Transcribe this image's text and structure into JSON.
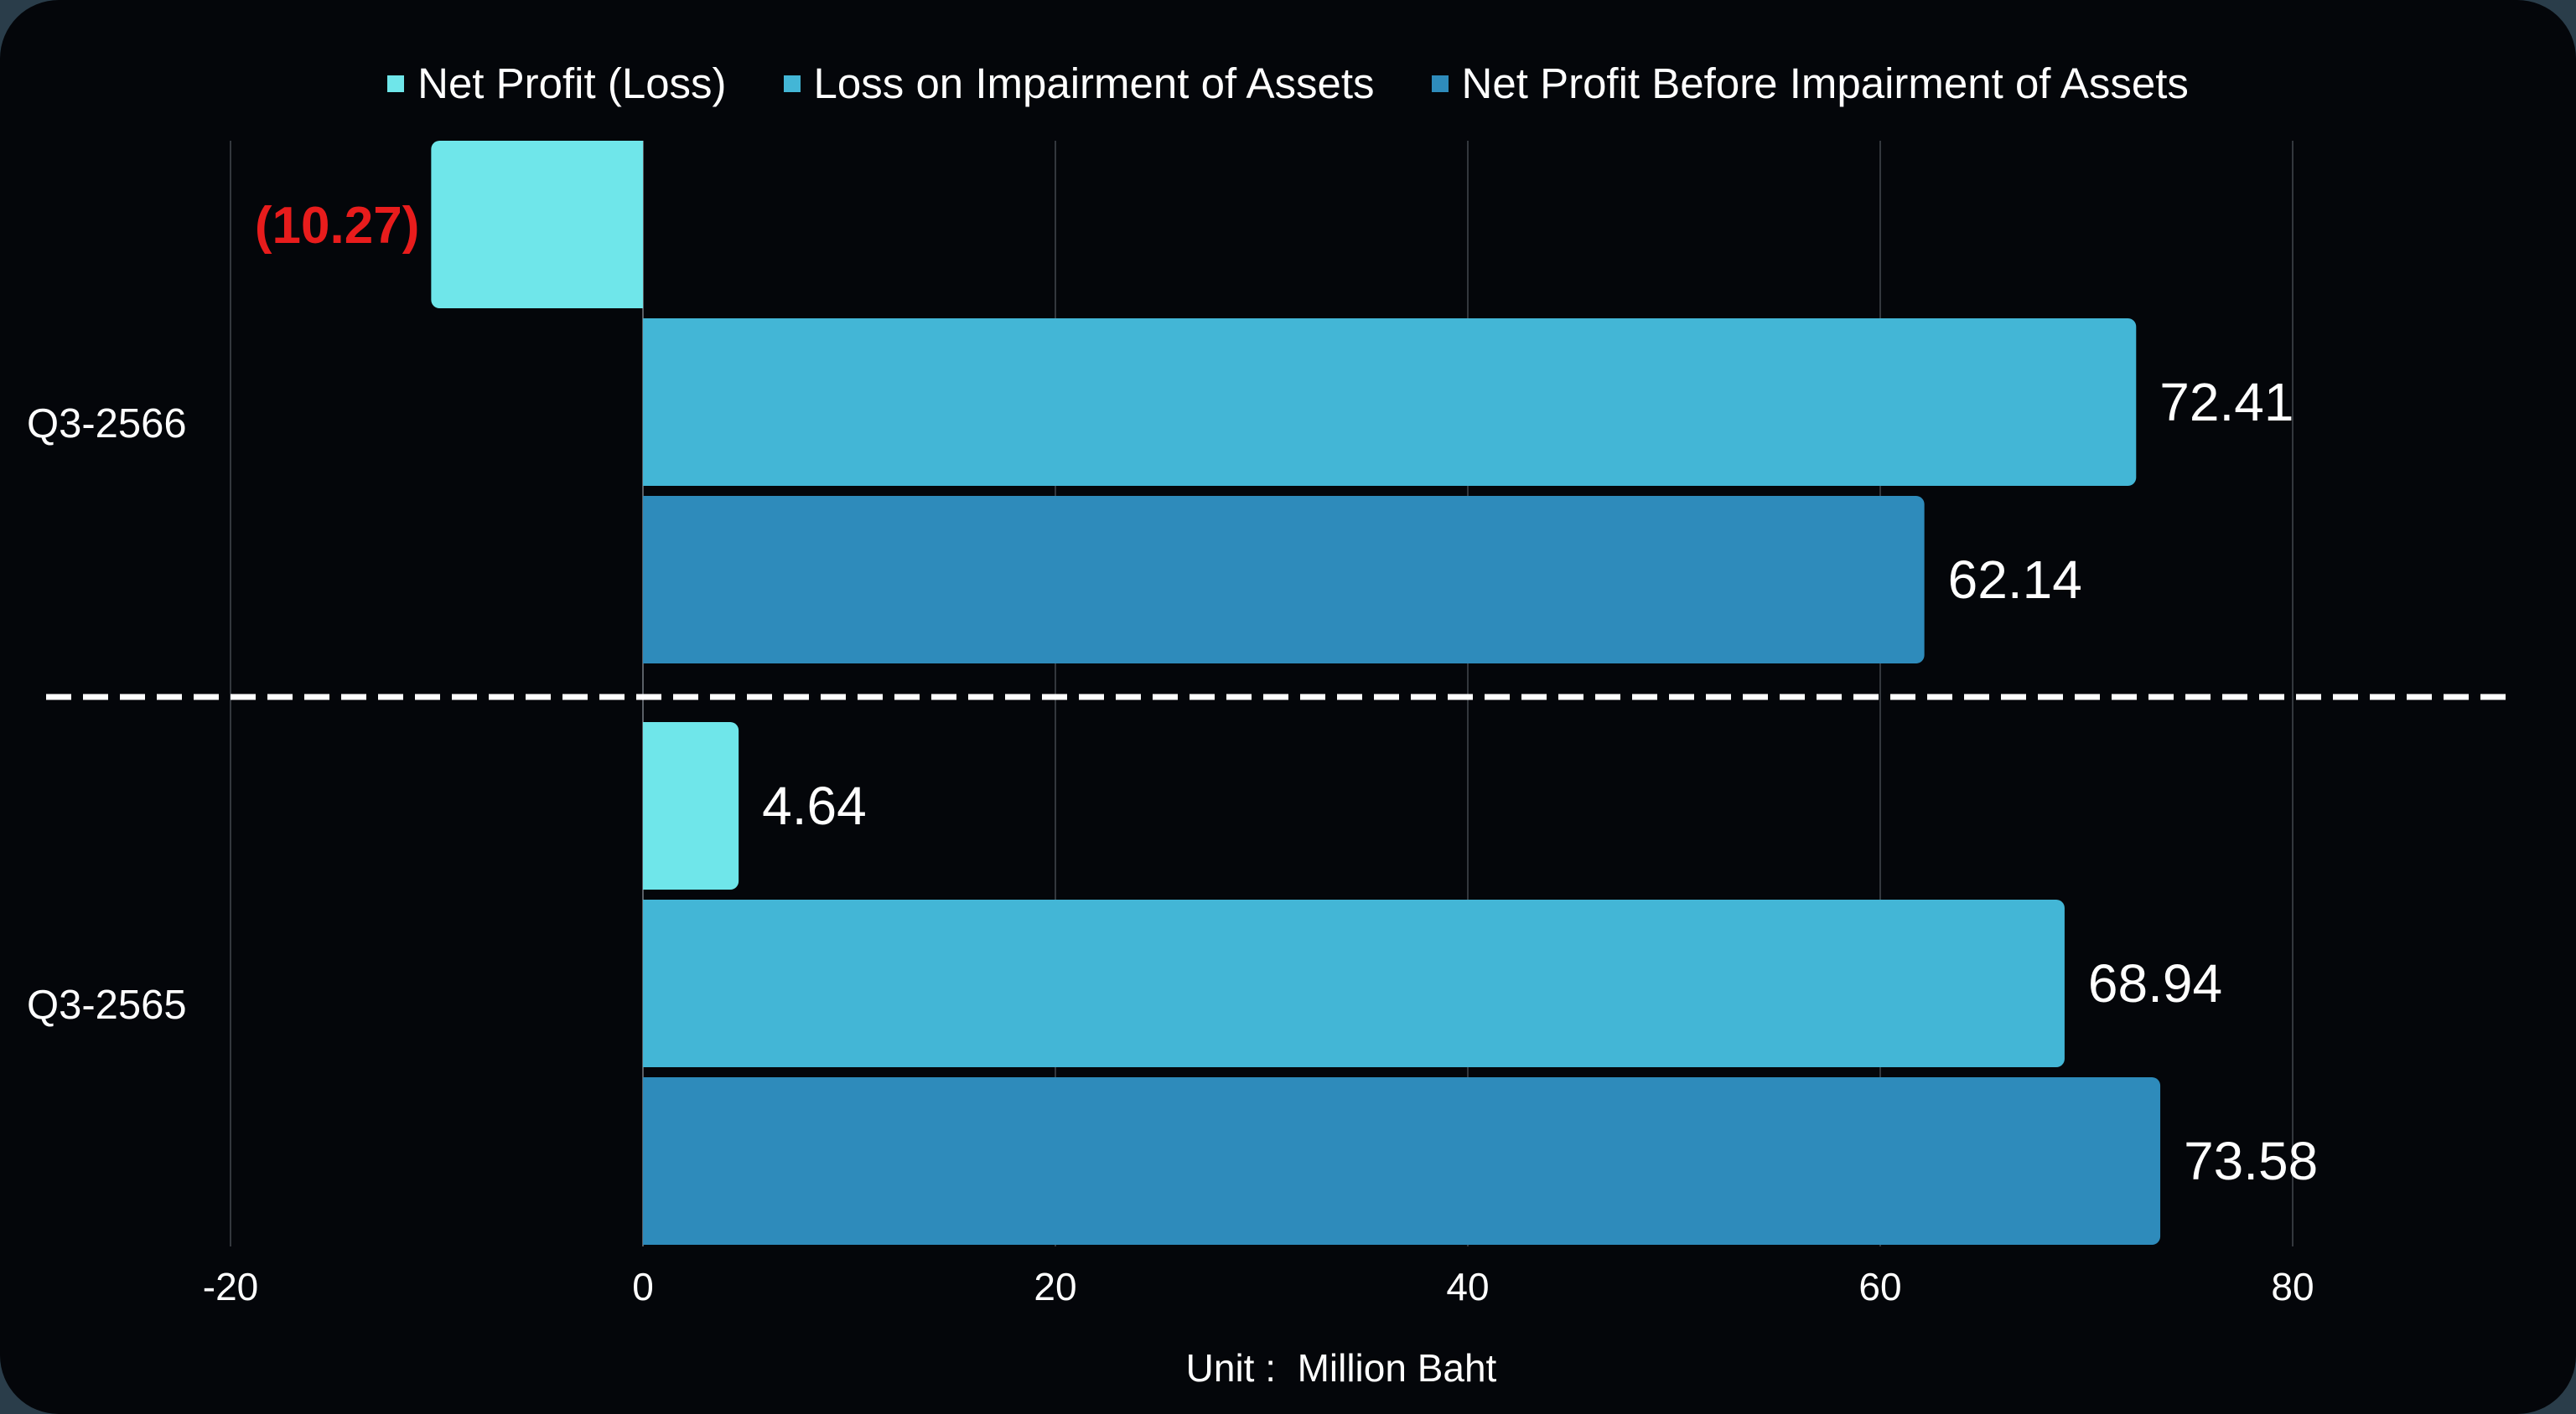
{
  "chart_data": {
    "type": "bar",
    "orientation": "horizontal",
    "categories": [
      "Q3-2566",
      "Q3-2565"
    ],
    "series": [
      {
        "name": "Net Profit (Loss)",
        "color": "#6fe6ea",
        "values": [
          -10.27,
          4.64
        ],
        "labels": [
          "(10.27)",
          "4.64"
        ],
        "label_colors": [
          "#e81c1c",
          "#ffffff"
        ]
      },
      {
        "name": "Loss on Impairment of Assets",
        "color": "#43b6d6",
        "values": [
          72.41,
          68.94
        ],
        "labels": [
          "72.41",
          "68.94"
        ],
        "label_colors": [
          "#ffffff",
          "#ffffff"
        ]
      },
      {
        "name": "Net Profit Before Impairment of Assets",
        "color": "#2e8bbb",
        "values": [
          62.14,
          73.58
        ],
        "labels": [
          "62.14",
          "73.58"
        ],
        "label_colors": [
          "#ffffff",
          "#ffffff"
        ]
      }
    ],
    "xlim": [
      -20,
      80
    ],
    "xticks": [
      -20,
      0,
      20,
      40,
      60,
      80
    ],
    "xtick_labels": [
      "-20",
      "0",
      "20",
      "40",
      "60",
      "80"
    ],
    "xlabel": "Unit :  Million Baht",
    "ylabel": "",
    "title": "",
    "grid": "vertical",
    "legend_position": "top",
    "separator": "dashed line between categories"
  }
}
